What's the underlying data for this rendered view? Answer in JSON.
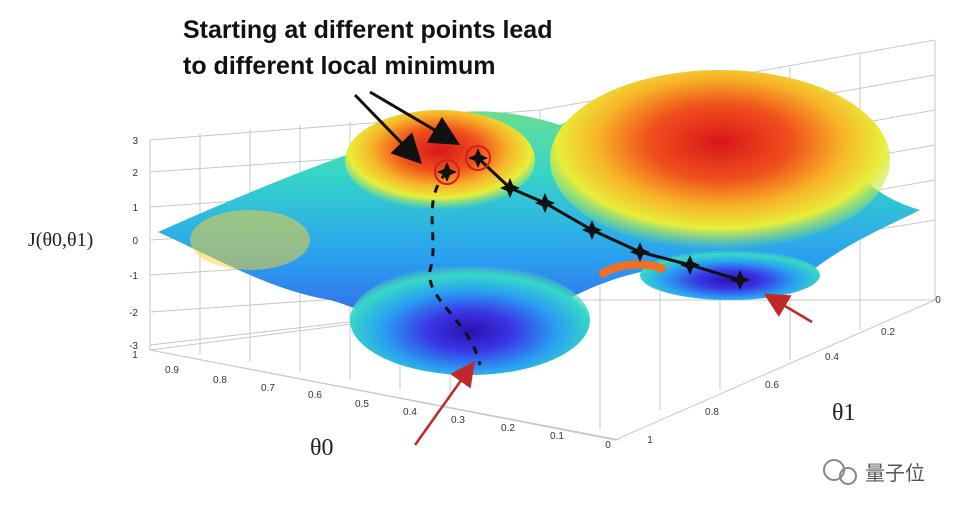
{
  "annotation": {
    "lines": [
      "Starting at different points lead",
      "to different local minimum"
    ]
  },
  "z_axis": {
    "label": "J(θ0,θ1)",
    "ticks": [
      "3",
      "2",
      "1",
      "0",
      "-1",
      "-2",
      "-3"
    ]
  },
  "theta0_axis": {
    "label": "θ0",
    "ticks": [
      "1",
      "0.9",
      "0.8",
      "0.7",
      "0.6",
      "0.5",
      "0.4",
      "0.3",
      "0.2",
      "0.1",
      "0"
    ]
  },
  "theta1_axis": {
    "label": "θ1",
    "ticks": [
      "0",
      "0.2",
      "0.4",
      "0.6",
      "0.8",
      "1"
    ]
  },
  "watermark": "量子位"
}
